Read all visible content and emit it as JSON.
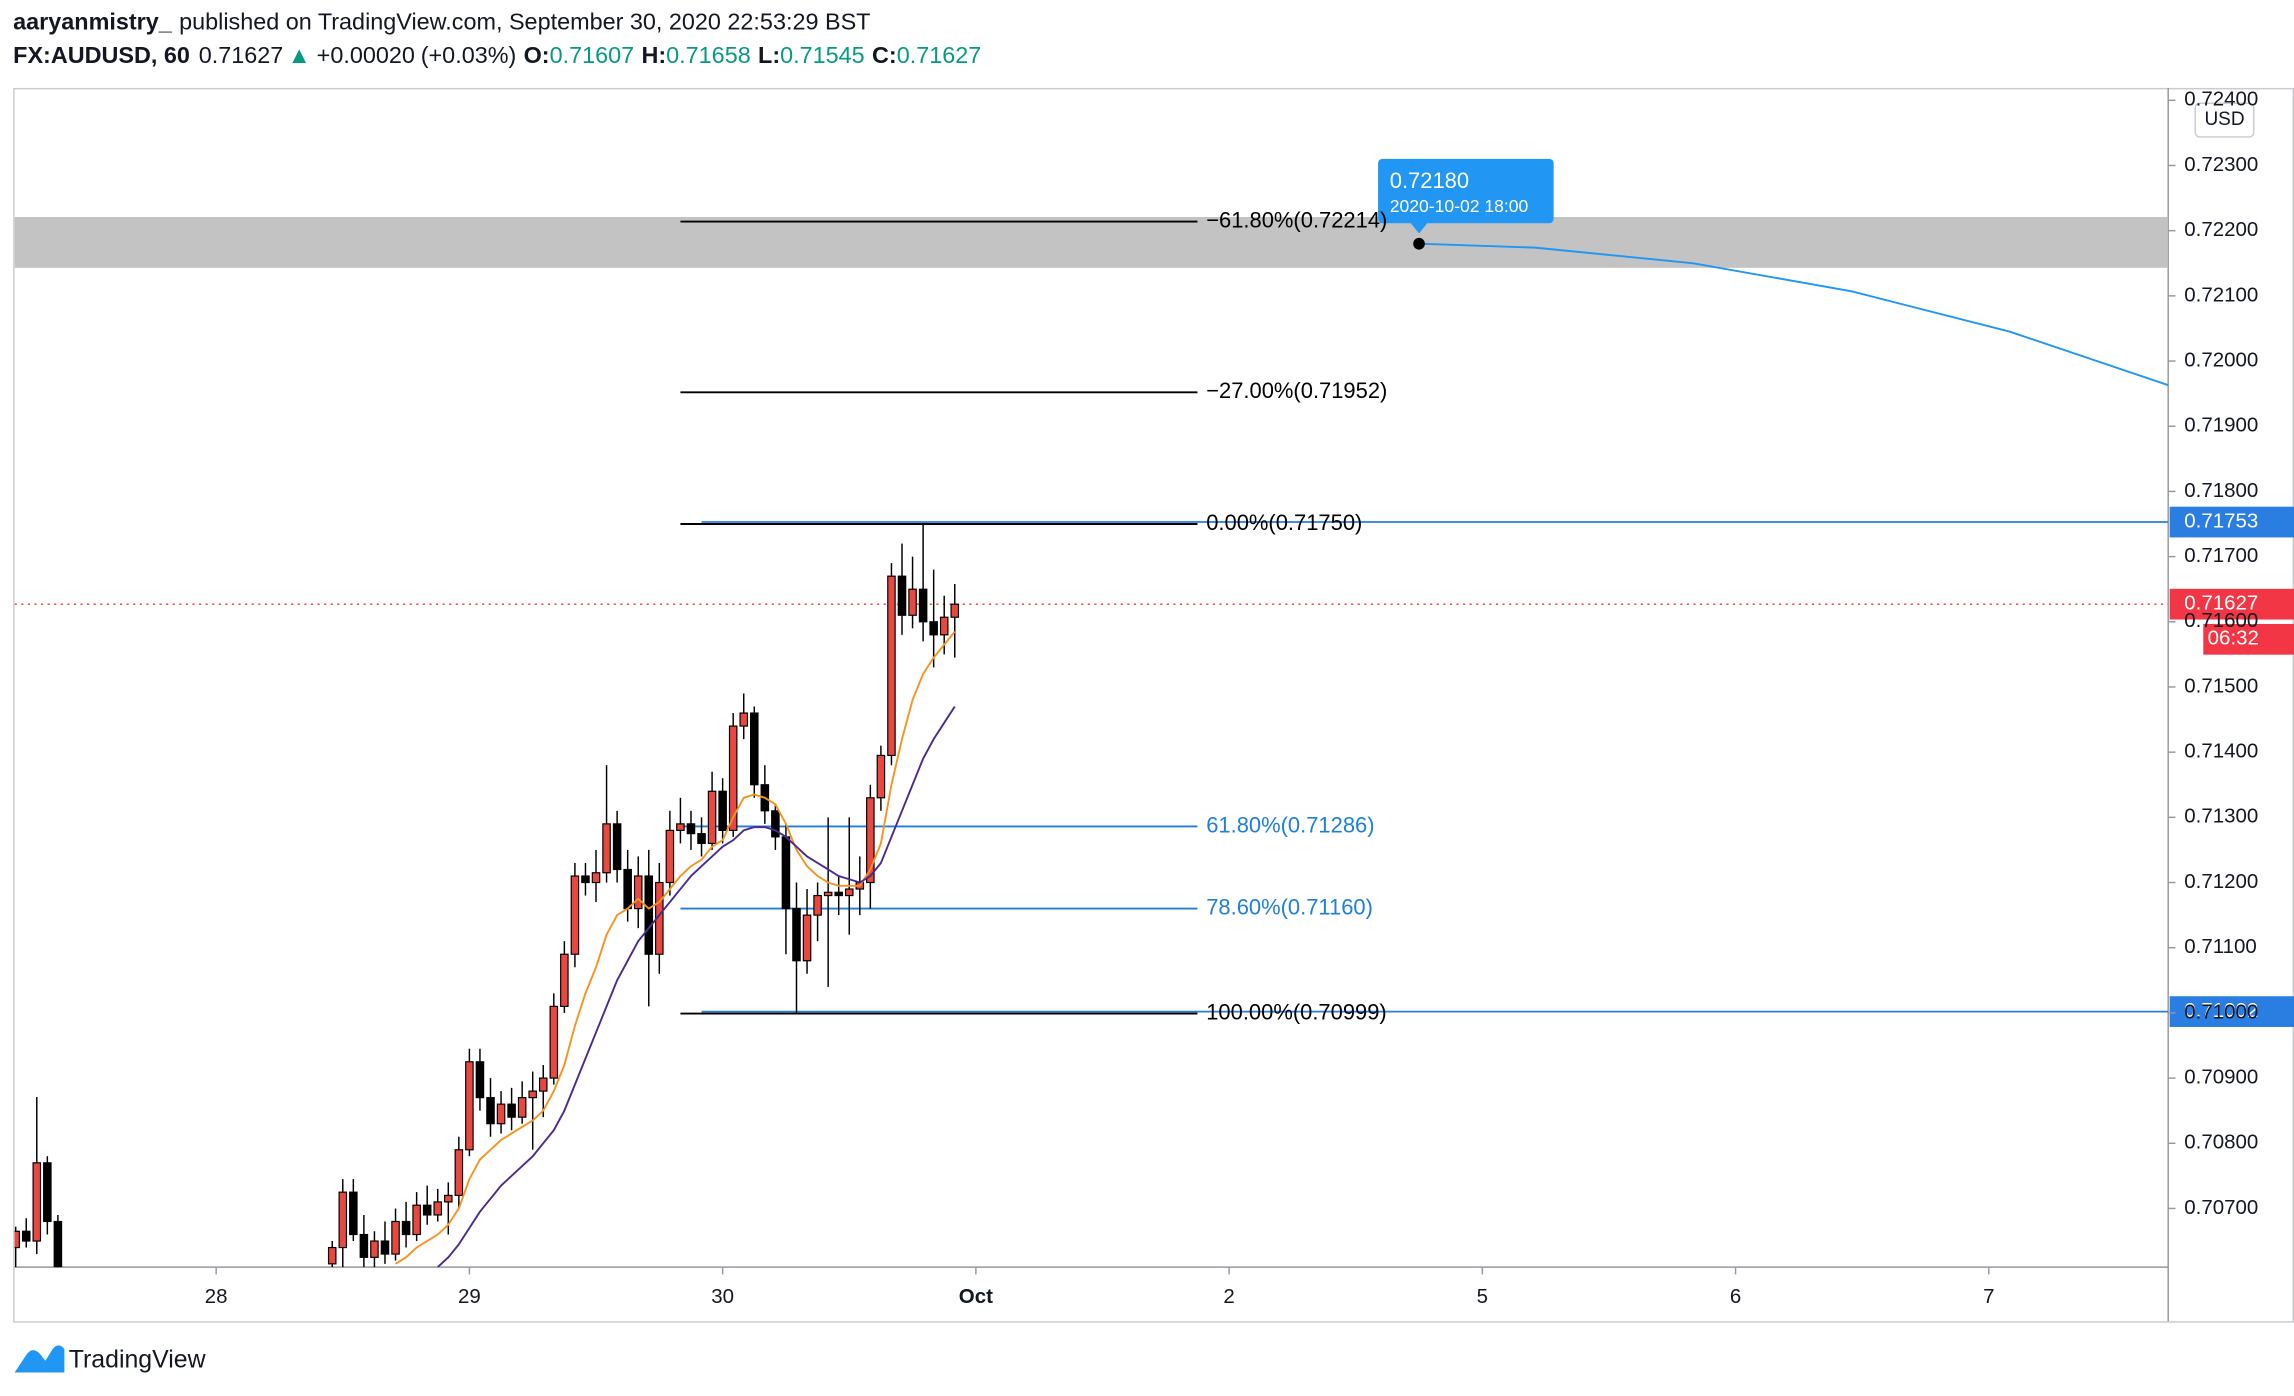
{
  "header": {
    "author": "aaryanmistry_",
    "published": "published on TradingView.com, September 30, 2020 22:53:29 BST",
    "symbol": "FX:AUDUSD, 60",
    "last": 0.71627,
    "arrow": "▲",
    "change": {
      "value": 0.0002,
      "label": "+0.00020"
    },
    "change_pct": {
      "value": 0.03,
      "label": "(+0.03%)"
    },
    "ohlc": [
      {
        "key": "O:",
        "value": 0.71607
      },
      {
        "key": "H:",
        "value": 0.71658
      },
      {
        "key": "L:",
        "value": 0.71545
      },
      {
        "key": "C:",
        "value": 0.71627
      }
    ]
  },
  "chart_data": {
    "type": "candlestick",
    "currency": "USD",
    "grid": false,
    "xlim": [
      -19.1,
      185.0
    ],
    "ylim": [
      0.7061,
      0.72419
    ],
    "xticks": [
      {
        "value": 0,
        "label": "28"
      },
      {
        "value": 24,
        "label": "29"
      },
      {
        "value": 48,
        "label": "30"
      },
      {
        "value": 72,
        "label": "Oct"
      },
      {
        "value": 96,
        "label": "2"
      },
      {
        "value": 120,
        "label": "5"
      },
      {
        "value": 144,
        "label": "6"
      },
      {
        "value": 168,
        "label": "7"
      }
    ],
    "yticks": [
      {
        "value": 0.707,
        "label": "0.70700"
      },
      {
        "value": 0.708,
        "label": "0.70800"
      },
      {
        "value": 0.709,
        "label": "0.70900"
      },
      {
        "value": 0.71,
        "label": "0.71000"
      },
      {
        "value": 0.711,
        "label": "0.71100"
      },
      {
        "value": 0.712,
        "label": "0.71200"
      },
      {
        "value": 0.713,
        "label": "0.71300"
      },
      {
        "value": 0.714,
        "label": "0.71400"
      },
      {
        "value": 0.715,
        "label": "0.71500"
      },
      {
        "value": 0.716,
        "label": "0.71600"
      },
      {
        "value": 0.717,
        "label": "0.71700"
      },
      {
        "value": 0.718,
        "label": "0.71800"
      },
      {
        "value": 0.719,
        "label": "0.71900"
      },
      {
        "value": 0.72,
        "label": "0.72000"
      },
      {
        "value": 0.721,
        "label": "0.72100"
      },
      {
        "value": 0.722,
        "label": "0.72200"
      },
      {
        "value": 0.723,
        "label": "0.72300"
      },
      {
        "value": 0.724,
        "label": "0.72400"
      }
    ],
    "up_color": "#e8483f",
    "down_color": "#000000",
    "candles": {
      "x": [
        -19,
        -18,
        -17,
        -16,
        -15,
        11,
        12,
        13,
        14,
        15,
        16,
        17,
        18,
        19,
        20,
        21,
        22,
        23,
        24,
        25,
        26,
        27,
        28,
        29,
        30,
        31,
        32,
        33,
        34,
        35,
        36,
        37,
        38,
        39,
        40,
        41,
        42,
        43,
        44,
        45,
        46,
        47,
        48,
        49,
        50,
        51,
        52,
        53,
        54,
        55,
        56,
        57,
        58,
        59,
        60,
        61,
        62,
        63,
        64,
        65,
        66,
        67,
        68,
        69,
        70
      ],
      "open": [
        0.7064,
        0.70665,
        0.7065,
        0.7077,
        0.7068,
        0.70615,
        0.7064,
        0.70725,
        0.7066,
        0.70625,
        0.7065,
        0.7063,
        0.7068,
        0.7066,
        0.70705,
        0.7069,
        0.7071,
        0.7072,
        0.7079,
        0.70925,
        0.7087,
        0.7083,
        0.7086,
        0.7084,
        0.7087,
        0.7088,
        0.709,
        0.7101,
        0.7109,
        0.7121,
        0.712,
        0.71215,
        0.7129,
        0.7122,
        0.7116,
        0.7121,
        0.7109,
        0.712,
        0.7128,
        0.7129,
        0.71275,
        0.7126,
        0.7134,
        0.7128,
        0.7144,
        0.7146,
        0.7135,
        0.7131,
        0.7127,
        0.7116,
        0.7108,
        0.7115,
        0.7118,
        0.71185,
        0.7118,
        0.7119,
        0.712,
        0.7133,
        0.71395,
        0.7167,
        0.7161,
        0.7165,
        0.716,
        0.7158,
        0.71607
      ],
      "high": [
        0.70672,
        0.70685,
        0.70871,
        0.7078,
        0.7069,
        0.7065,
        0.70745,
        0.70745,
        0.7069,
        0.70665,
        0.7068,
        0.707,
        0.7071,
        0.70725,
        0.70735,
        0.7073,
        0.7074,
        0.7081,
        0.70945,
        0.70945,
        0.709,
        0.7088,
        0.70885,
        0.70895,
        0.7091,
        0.7092,
        0.7103,
        0.7111,
        0.7123,
        0.7123,
        0.7125,
        0.7138,
        0.7131,
        0.7125,
        0.7124,
        0.7125,
        0.7123,
        0.7131,
        0.7133,
        0.7131,
        0.713,
        0.7137,
        0.7136,
        0.7146,
        0.7149,
        0.7147,
        0.7138,
        0.7132,
        0.7129,
        0.712,
        0.7119,
        0.712,
        0.713,
        0.7121,
        0.713,
        0.7124,
        0.7135,
        0.7141,
        0.7169,
        0.7172,
        0.717,
        0.7175,
        0.7168,
        0.7164,
        0.71658
      ],
      "low": [
        0.7061,
        0.7064,
        0.7063,
        0.7066,
        0.706,
        0.706,
        0.7061,
        0.7065,
        0.7061,
        0.70605,
        0.70615,
        0.7062,
        0.7064,
        0.7065,
        0.70675,
        0.7068,
        0.7066,
        0.707,
        0.7078,
        0.7085,
        0.7081,
        0.70815,
        0.7082,
        0.7083,
        0.7079,
        0.7084,
        0.7089,
        0.71,
        0.7107,
        0.7118,
        0.7117,
        0.712,
        0.712,
        0.7114,
        0.7113,
        0.7101,
        0.7106,
        0.7118,
        0.7126,
        0.7125,
        0.7124,
        0.7125,
        0.7126,
        0.7127,
        0.7142,
        0.7133,
        0.7129,
        0.7125,
        0.7109,
        0.70999,
        0.7106,
        0.7111,
        0.7104,
        0.7115,
        0.7112,
        0.7115,
        0.7116,
        0.7131,
        0.7138,
        0.7158,
        0.7159,
        0.7157,
        0.7153,
        0.7155,
        0.71545
      ],
      "close": [
        0.70665,
        0.7065,
        0.7077,
        0.7068,
        0.7061,
        0.7064,
        0.70725,
        0.7066,
        0.70625,
        0.7065,
        0.7063,
        0.7068,
        0.7066,
        0.70705,
        0.7069,
        0.7071,
        0.7072,
        0.7079,
        0.70925,
        0.7087,
        0.7083,
        0.7086,
        0.7084,
        0.7087,
        0.7088,
        0.709,
        0.7101,
        0.7109,
        0.7121,
        0.712,
        0.71215,
        0.7129,
        0.7122,
        0.7116,
        0.7121,
        0.7109,
        0.712,
        0.7128,
        0.7129,
        0.71275,
        0.7126,
        0.7134,
        0.7128,
        0.7144,
        0.7146,
        0.7135,
        0.7131,
        0.7127,
        0.7116,
        0.7108,
        0.7115,
        0.7118,
        0.71185,
        0.7118,
        0.7119,
        0.712,
        0.7133,
        0.71395,
        0.7167,
        0.7161,
        0.7165,
        0.716,
        0.7158,
        0.71607,
        0.71627
      ]
    },
    "series": [
      {
        "color": "#f7931e",
        "values": [
          null,
          null,
          null,
          null,
          null,
          null,
          null,
          null,
          null,
          null,
          null,
          0.70615,
          0.70625,
          0.7064,
          0.7065,
          0.7066,
          0.70675,
          0.707,
          0.70745,
          0.70775,
          0.7079,
          0.70805,
          0.70815,
          0.70825,
          0.70835,
          0.7085,
          0.7088,
          0.7092,
          0.7098,
          0.7103,
          0.7107,
          0.7112,
          0.7115,
          0.7116,
          0.71175,
          0.7116,
          0.7117,
          0.7119,
          0.7121,
          0.71225,
          0.71235,
          0.71255,
          0.71265,
          0.713,
          0.7133,
          0.71335,
          0.7133,
          0.7132,
          0.7129,
          0.7125,
          0.71225,
          0.7121,
          0.712,
          0.71195,
          0.71195,
          0.71195,
          0.7122,
          0.7126,
          0.7135,
          0.7142,
          0.7148,
          0.7152,
          0.71545,
          0.71565,
          0.71585
        ]
      },
      {
        "color": "#4b2a8e",
        "values": [
          null,
          null,
          null,
          null,
          null,
          null,
          null,
          null,
          null,
          null,
          null,
          null,
          null,
          null,
          null,
          0.7061,
          0.70625,
          0.70645,
          0.7067,
          0.70695,
          0.70715,
          0.70735,
          0.7075,
          0.70765,
          0.7078,
          0.708,
          0.7082,
          0.7085,
          0.7089,
          0.7093,
          0.7097,
          0.7101,
          0.7105,
          0.7108,
          0.7111,
          0.7113,
          0.7115,
          0.7117,
          0.7119,
          0.7121,
          0.71225,
          0.7124,
          0.71255,
          0.71265,
          0.7128,
          0.71285,
          0.71285,
          0.7128,
          0.7127,
          0.71255,
          0.7124,
          0.7123,
          0.7122,
          0.7121,
          0.71205,
          0.712,
          0.7121,
          0.7123,
          0.7127,
          0.7131,
          0.7135,
          0.7139,
          0.7142,
          0.71445,
          0.7147
        ]
      }
    ],
    "zone": {
      "from": 0.72143,
      "to": 0.72221,
      "color": "#bdbdbd"
    },
    "fib": {
      "x": [
        44,
        93
      ],
      "levels": [
        {
          "value": 0.72214,
          "label": "−61.80%(0.72214)",
          "color": "#000000"
        },
        {
          "value": 0.71952,
          "label": "−27.00%(0.71952)",
          "color": "#000000"
        },
        {
          "value": 0.7175,
          "label": "0.00%(0.71750)",
          "color": "#000000"
        },
        {
          "value": 0.71286,
          "label": "61.80%(0.71286)",
          "color": "#1e7fd9"
        },
        {
          "value": 0.7116,
          "label": "78.60%(0.71160)",
          "color": "#1e7fd9"
        },
        {
          "value": 0.70999,
          "label": "100.00%(0.70999)",
          "color": "#000000"
        }
      ]
    },
    "price_lines": {
      "color": "#2a7de1",
      "lines": [
        {
          "value": 0.71753,
          "x": 46
        },
        {
          "value": 0.71002,
          "x": 46
        }
      ]
    },
    "last_price": {
      "value": 0.71627,
      "countdown": "06:32",
      "color": "#f23645"
    },
    "callout": {
      "x": 114,
      "value": 0.7218,
      "label": "0.72180",
      "date": "2020-10-02 18:00",
      "color": "#2196f3"
    },
    "projection": {
      "color": "#2196f3",
      "x": [
        114,
        125,
        140,
        155,
        170,
        185
      ],
      "values": [
        0.7218,
        0.72174,
        0.7215,
        0.72107,
        0.72045,
        0.71963
      ]
    }
  },
  "footer": {
    "brand": "TradingView"
  }
}
